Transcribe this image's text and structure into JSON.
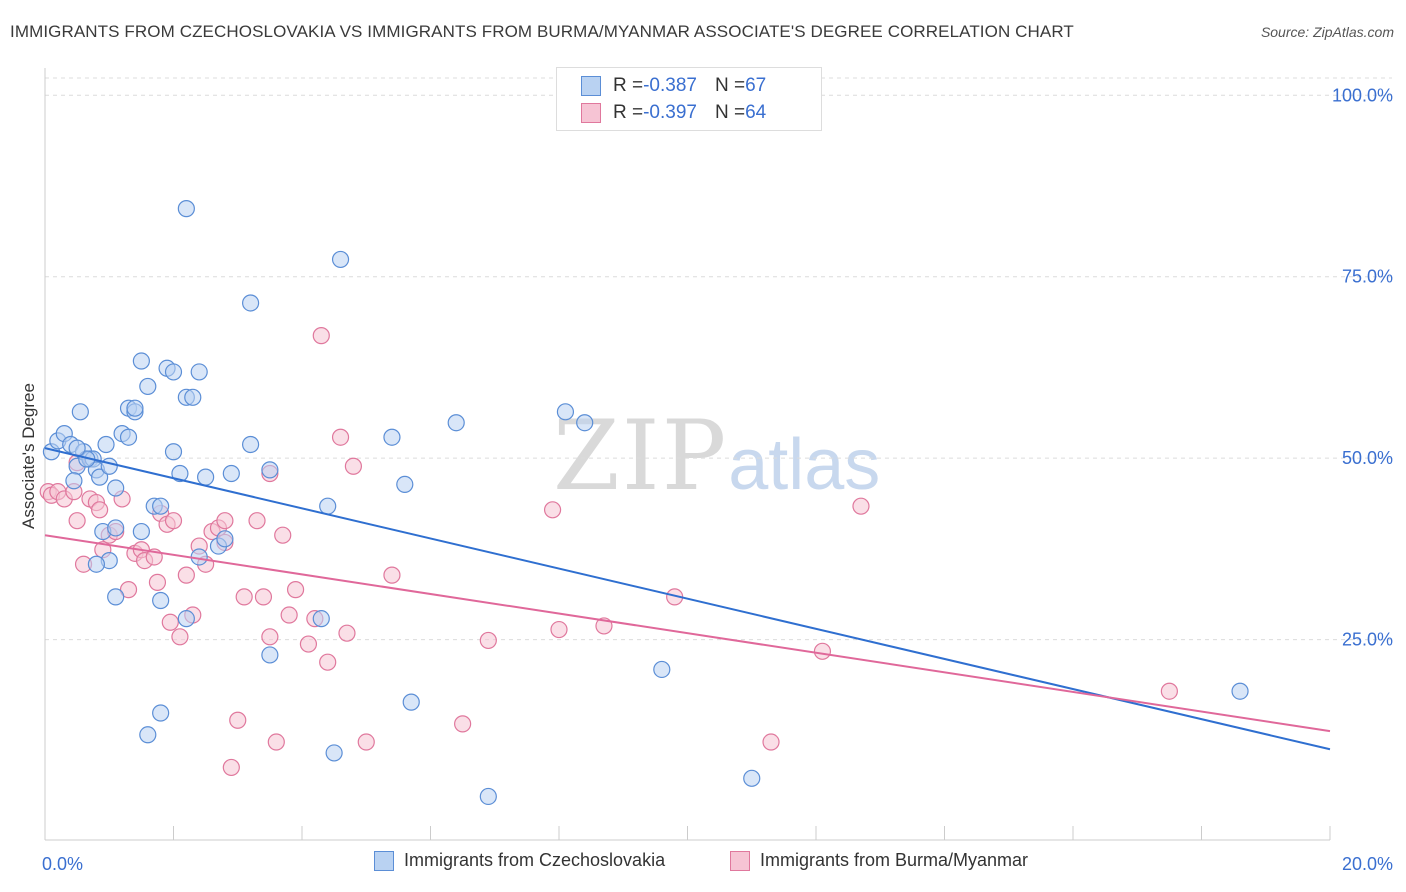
{
  "title": "IMMIGRANTS FROM CZECHOSLOVAKIA VS IMMIGRANTS FROM BURMA/MYANMAR ASSOCIATE'S DEGREE CORRELATION CHART",
  "source": "Source: ZipAtlas.com",
  "watermark": {
    "zip": "ZIP",
    "atlas": "atlas"
  },
  "stats": [
    {
      "r_label": "R = ",
      "r_value": "-0.387",
      "n_label": "N = ",
      "n_value": "67"
    },
    {
      "r_label": "R = ",
      "r_value": "-0.397",
      "n_label": "N = ",
      "n_value": "64"
    }
  ],
  "chart_data": {
    "type": "scatter",
    "title": "IMMIGRANTS FROM CZECHOSLOVAKIA VS IMMIGRANTS FROM BURMA/MYANMAR ASSOCIATE'S DEGREE CORRELATION CHART",
    "xlabel": "",
    "ylabel": "Associate's Degree",
    "xlim": [
      0,
      20
    ],
    "ylim": [
      0,
      105
    ],
    "x_tick_labels": [
      {
        "value": 0,
        "label": "0.0%"
      },
      {
        "value": 20,
        "label": "20.0%"
      }
    ],
    "y_tick_labels": [
      {
        "value": 100,
        "label": "100.0%"
      },
      {
        "value": 75,
        "label": "75.0%"
      },
      {
        "value": 50,
        "label": "50.0%"
      },
      {
        "value": 25,
        "label": "25.0%"
      }
    ],
    "grid": true,
    "legend_position": "bottom",
    "series": [
      {
        "name": "Immigrants from Czechoslovakia",
        "color": "#5b8ed6",
        "fill": "#b9d2f2",
        "trend": {
          "x": [
            0,
            20
          ],
          "y": [
            54,
            12.5
          ]
        },
        "points": [
          [
            0.1,
            53.5
          ],
          [
            0.2,
            55.0
          ],
          [
            0.3,
            56.0
          ],
          [
            0.4,
            54.5
          ],
          [
            0.5,
            51.5
          ],
          [
            0.45,
            49.5
          ],
          [
            0.55,
            59.0
          ],
          [
            0.6,
            53.5
          ],
          [
            0.7,
            52.5
          ],
          [
            0.75,
            52.5
          ],
          [
            0.8,
            51.0
          ],
          [
            0.85,
            50.0
          ],
          [
            0.95,
            54.5
          ],
          [
            1.1,
            48.5
          ],
          [
            1.2,
            56.0
          ],
          [
            1.3,
            59.5
          ],
          [
            1.4,
            59.0
          ],
          [
            1.5,
            66.0
          ],
          [
            1.6,
            62.5
          ],
          [
            1.7,
            46.0
          ],
          [
            1.9,
            65.0
          ],
          [
            2.0,
            64.5
          ],
          [
            2.2,
            61.0
          ],
          [
            2.3,
            61.0
          ],
          [
            2.4,
            64.5
          ],
          [
            2.1,
            50.5
          ],
          [
            2.0,
            53.5
          ],
          [
            2.5,
            50.0
          ],
          [
            1.8,
            46.0
          ],
          [
            1.5,
            42.5
          ],
          [
            0.9,
            42.5
          ],
          [
            1.1,
            43.0
          ],
          [
            1.0,
            38.5
          ],
          [
            0.8,
            38.0
          ],
          [
            1.1,
            33.5
          ],
          [
            1.8,
            33.0
          ],
          [
            2.4,
            39.0
          ],
          [
            2.7,
            40.5
          ],
          [
            2.8,
            41.5
          ],
          [
            2.2,
            30.5
          ],
          [
            2.9,
            50.5
          ],
          [
            3.2,
            54.5
          ],
          [
            3.5,
            51.0
          ],
          [
            3.5,
            25.5
          ],
          [
            3.2,
            74.0
          ],
          [
            2.2,
            87.0
          ],
          [
            4.6,
            80.0
          ],
          [
            4.4,
            46.0
          ],
          [
            5.4,
            55.5
          ],
          [
            5.6,
            49.0
          ],
          [
            6.4,
            57.5
          ],
          [
            4.3,
            30.5
          ],
          [
            5.7,
            19.0
          ],
          [
            4.5,
            12.0
          ],
          [
            1.8,
            17.5
          ],
          [
            1.6,
            14.5
          ],
          [
            6.9,
            6.0
          ],
          [
            8.1,
            59.0
          ],
          [
            8.4,
            57.5
          ],
          [
            9.6,
            23.5
          ],
          [
            11.0,
            8.5
          ],
          [
            18.6,
            20.5
          ],
          [
            1.3,
            55.5
          ],
          [
            1.4,
            59.5
          ],
          [
            0.65,
            52.5
          ],
          [
            1.0,
            51.5
          ],
          [
            0.5,
            54.0
          ]
        ]
      },
      {
        "name": "Immigrants from Burma/Myanmar",
        "color": "#e0789d",
        "fill": "#f6c4d4",
        "trend": {
          "x": [
            0,
            20
          ],
          "y": [
            42,
            15
          ]
        },
        "points": [
          [
            0.05,
            48.0
          ],
          [
            0.1,
            47.5
          ],
          [
            0.2,
            48.0
          ],
          [
            0.3,
            47.0
          ],
          [
            0.45,
            48.0
          ],
          [
            0.5,
            52.0
          ],
          [
            0.5,
            44.0
          ],
          [
            0.6,
            38.0
          ],
          [
            0.7,
            47.0
          ],
          [
            0.8,
            46.5
          ],
          [
            0.85,
            45.5
          ],
          [
            0.9,
            40.0
          ],
          [
            1.0,
            42.0
          ],
          [
            1.1,
            42.5
          ],
          [
            1.2,
            47.0
          ],
          [
            1.3,
            34.5
          ],
          [
            1.4,
            39.5
          ],
          [
            1.5,
            40.0
          ],
          [
            1.55,
            38.5
          ],
          [
            1.7,
            39.0
          ],
          [
            1.75,
            35.5
          ],
          [
            1.8,
            45.0
          ],
          [
            1.9,
            43.5
          ],
          [
            2.0,
            44.0
          ],
          [
            1.95,
            30.0
          ],
          [
            2.1,
            28.0
          ],
          [
            2.2,
            36.5
          ],
          [
            2.3,
            31.0
          ],
          [
            2.4,
            40.5
          ],
          [
            2.5,
            38.0
          ],
          [
            2.6,
            42.5
          ],
          [
            2.7,
            43.0
          ],
          [
            2.8,
            44.0
          ],
          [
            2.8,
            41.0
          ],
          [
            3.0,
            16.5
          ],
          [
            3.1,
            33.5
          ],
          [
            3.3,
            44.0
          ],
          [
            3.4,
            33.5
          ],
          [
            3.5,
            50.5
          ],
          [
            3.5,
            28.0
          ],
          [
            3.6,
            13.5
          ],
          [
            3.7,
            42.0
          ],
          [
            3.8,
            31.0
          ],
          [
            3.9,
            34.5
          ],
          [
            4.1,
            27.0
          ],
          [
            4.2,
            30.5
          ],
          [
            4.3,
            69.5
          ],
          [
            4.4,
            24.5
          ],
          [
            4.6,
            55.5
          ],
          [
            4.7,
            28.5
          ],
          [
            4.8,
            51.5
          ],
          [
            5.0,
            13.5
          ],
          [
            5.4,
            36.5
          ],
          [
            6.5,
            16.0
          ],
          [
            6.9,
            27.5
          ],
          [
            7.9,
            45.5
          ],
          [
            8.0,
            29.0
          ],
          [
            8.7,
            29.5
          ],
          [
            9.8,
            33.5
          ],
          [
            11.3,
            13.5
          ],
          [
            12.1,
            26.0
          ],
          [
            12.7,
            46.0
          ],
          [
            17.5,
            20.5
          ],
          [
            2.9,
            10.0
          ]
        ]
      }
    ]
  }
}
